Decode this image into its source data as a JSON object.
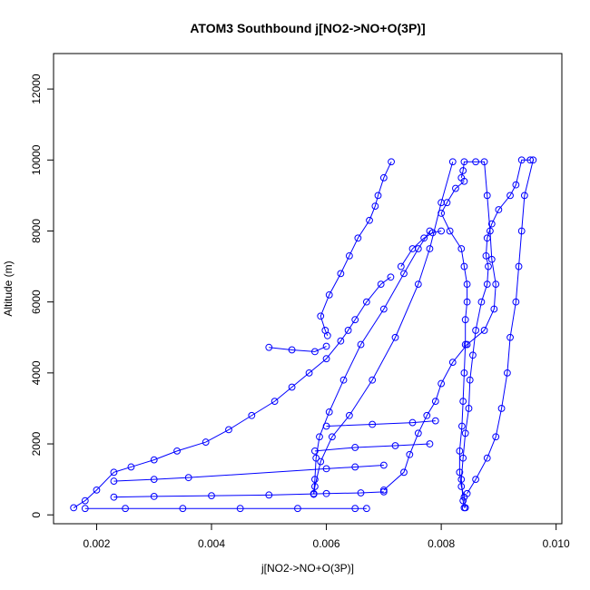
{
  "chart_data": {
    "type": "scatter",
    "title": "ATOM3 Southbound j[NO2->NO+O(3P)]",
    "xlabel": "j[NO2->NO+O(3P)]",
    "ylabel": "Altitude (m)",
    "xlim": [
      0.00125,
      0.0101
    ],
    "ylim": [
      -250,
      13000
    ],
    "x_ticks": [
      0.002,
      0.004,
      0.006,
      0.008,
      0.01
    ],
    "x_tick_labels": [
      "0.002",
      "0.004",
      "0.006",
      "0.008",
      "0.010"
    ],
    "y_ticks": [
      0,
      2000,
      4000,
      6000,
      8000,
      10000,
      12000
    ],
    "y_tick_labels": [
      "0",
      "2000",
      "4000",
      "6000",
      "8000",
      "10000",
      "12000"
    ],
    "grid": false,
    "legend": "none",
    "color": "#0000ff",
    "marker": "open-circle",
    "series": [
      {
        "points": [
          [
            0.00713,
            9950
          ],
          [
            0.007,
            9500
          ],
          [
            0.0069,
            9000
          ],
          [
            0.00685,
            8700
          ],
          [
            0.00675,
            8300
          ],
          [
            0.00655,
            7800
          ],
          [
            0.0064,
            7300
          ],
          [
            0.00625,
            6800
          ],
          [
            0.00605,
            6200
          ],
          [
            0.0059,
            5600
          ],
          [
            0.00598,
            5200
          ],
          [
            0.00602,
            5050
          ]
        ]
      },
      {
        "points": [
          [
            0.00712,
            6700
          ],
          [
            0.00695,
            6500
          ],
          [
            0.0067,
            6000
          ],
          [
            0.0065,
            5500
          ],
          [
            0.00638,
            5200
          ],
          [
            0.00625,
            4900
          ],
          [
            0.006,
            4400
          ],
          [
            0.0057,
            4000
          ],
          [
            0.0054,
            3600
          ],
          [
            0.0051,
            3200
          ],
          [
            0.0047,
            2800
          ],
          [
            0.0043,
            2400
          ],
          [
            0.0039,
            2050
          ],
          [
            0.0034,
            1800
          ],
          [
            0.003,
            1550
          ],
          [
            0.0026,
            1350
          ],
          [
            0.0023,
            1200
          ],
          [
            0.002,
            700
          ],
          [
            0.0018,
            400
          ],
          [
            0.0016,
            200
          ]
        ]
      },
      {
        "points": [
          [
            0.0073,
            7000
          ],
          [
            0.0075,
            7500
          ],
          [
            0.0077,
            7800
          ],
          [
            0.00785,
            7950
          ],
          [
            0.008,
            8000
          ]
        ]
      },
      {
        "points": [
          [
            0.0078,
            8000
          ],
          [
            0.0076,
            7500
          ],
          [
            0.00735,
            6800
          ],
          [
            0.007,
            5800
          ],
          [
            0.0066,
            4800
          ],
          [
            0.0063,
            3800
          ],
          [
            0.00605,
            2900
          ],
          [
            0.00588,
            2200
          ],
          [
            0.00582,
            1600
          ],
          [
            0.0058,
            1000
          ],
          [
            0.00578,
            600
          ]
        ]
      },
      {
        "points": [
          [
            0.0082,
            9950
          ],
          [
            0.008,
            8800
          ],
          [
            0.0078,
            7500
          ],
          [
            0.0076,
            6500
          ],
          [
            0.0072,
            5000
          ],
          [
            0.0068,
            3800
          ],
          [
            0.0064,
            2800
          ],
          [
            0.0061,
            2200
          ],
          [
            0.0059,
            1500
          ],
          [
            0.0058,
            800
          ],
          [
            0.00578,
            580
          ]
        ]
      },
      {
        "points": [
          [
            0.00835,
            9500
          ],
          [
            0.00838,
            9700
          ],
          [
            0.0084,
            9950
          ],
          [
            0.0086,
            9950
          ],
          [
            0.00875,
            9950
          ],
          [
            0.0088,
            9000
          ],
          [
            0.00885,
            8000
          ],
          [
            0.00888,
            7200
          ],
          [
            0.00895,
            6500
          ],
          [
            0.00892,
            5800
          ],
          [
            0.00875,
            5200
          ],
          [
            0.00845,
            4800
          ],
          [
            0.0082,
            4300
          ],
          [
            0.008,
            3700
          ],
          [
            0.0079,
            3200
          ],
          [
            0.00775,
            2800
          ],
          [
            0.0076,
            2300
          ],
          [
            0.00745,
            1700
          ],
          [
            0.00735,
            1200
          ],
          [
            0.007,
            700
          ]
        ]
      },
      {
        "points": [
          [
            0.0084,
            9400
          ],
          [
            0.00825,
            9200
          ],
          [
            0.0081,
            8800
          ],
          [
            0.008,
            8500
          ],
          [
            0.00815,
            8000
          ],
          [
            0.00835,
            7500
          ],
          [
            0.0084,
            7000
          ],
          [
            0.00845,
            6500
          ],
          [
            0.00845,
            6000
          ],
          [
            0.00842,
            5500
          ],
          [
            0.00842,
            4800
          ],
          [
            0.0084,
            4000
          ],
          [
            0.00838,
            3200
          ],
          [
            0.00836,
            2500
          ],
          [
            0.00832,
            1800
          ],
          [
            0.00832,
            1200
          ],
          [
            0.00835,
            800
          ],
          [
            0.0084,
            500
          ],
          [
            0.00842,
            200
          ]
        ]
      },
      {
        "points": [
          [
            0.00955,
            10000
          ],
          [
            0.0094,
            10000
          ],
          [
            0.0093,
            9300
          ],
          [
            0.0092,
            9000
          ],
          [
            0.009,
            8600
          ],
          [
            0.00888,
            8200
          ],
          [
            0.0088,
            7800
          ],
          [
            0.00878,
            7300
          ],
          [
            0.00882,
            7000
          ],
          [
            0.0088,
            6500
          ],
          [
            0.0087,
            6000
          ],
          [
            0.0086,
            5200
          ],
          [
            0.00855,
            4500
          ],
          [
            0.0085,
            3800
          ],
          [
            0.00848,
            3000
          ],
          [
            0.00842,
            2300
          ],
          [
            0.00838,
            1600
          ],
          [
            0.00835,
            1000
          ],
          [
            0.00838,
            400
          ],
          [
            0.0084,
            200
          ]
        ]
      },
      {
        "points": [
          [
            0.0096,
            10000
          ],
          [
            0.00945,
            9000
          ],
          [
            0.0094,
            8000
          ],
          [
            0.00935,
            7000
          ],
          [
            0.0093,
            6000
          ],
          [
            0.0092,
            5000
          ],
          [
            0.00915,
            4000
          ],
          [
            0.00905,
            3000
          ],
          [
            0.00895,
            2200
          ],
          [
            0.0088,
            1600
          ],
          [
            0.0086,
            1000
          ],
          [
            0.00845,
            600
          ]
        ]
      },
      {
        "points": [
          [
            0.0018,
            180
          ],
          [
            0.0025,
            180
          ],
          [
            0.0035,
            180
          ],
          [
            0.0045,
            180
          ],
          [
            0.0055,
            180
          ],
          [
            0.0065,
            180
          ],
          [
            0.0067,
            180
          ]
        ]
      },
      {
        "points": [
          [
            0.0023,
            500
          ],
          [
            0.003,
            520
          ],
          [
            0.004,
            540
          ],
          [
            0.005,
            560
          ],
          [
            0.006,
            600
          ],
          [
            0.0066,
            620
          ],
          [
            0.007,
            650
          ]
        ]
      },
      {
        "points": [
          [
            0.0023,
            950
          ],
          [
            0.003,
            1000
          ],
          [
            0.0036,
            1050
          ],
          [
            0.006,
            1300
          ],
          [
            0.0065,
            1350
          ],
          [
            0.007,
            1400
          ]
        ]
      },
      {
        "points": [
          [
            0.005,
            4720
          ],
          [
            0.0054,
            4650
          ],
          [
            0.0058,
            4600
          ],
          [
            0.006,
            4750
          ]
        ]
      },
      {
        "points": [
          [
            0.0058,
            1800
          ],
          [
            0.0065,
            1900
          ],
          [
            0.0072,
            1950
          ],
          [
            0.0078,
            2000
          ]
        ]
      },
      {
        "points": [
          [
            0.006,
            2500
          ],
          [
            0.0068,
            2550
          ],
          [
            0.0075,
            2600
          ],
          [
            0.0079,
            2650
          ]
        ]
      }
    ]
  }
}
